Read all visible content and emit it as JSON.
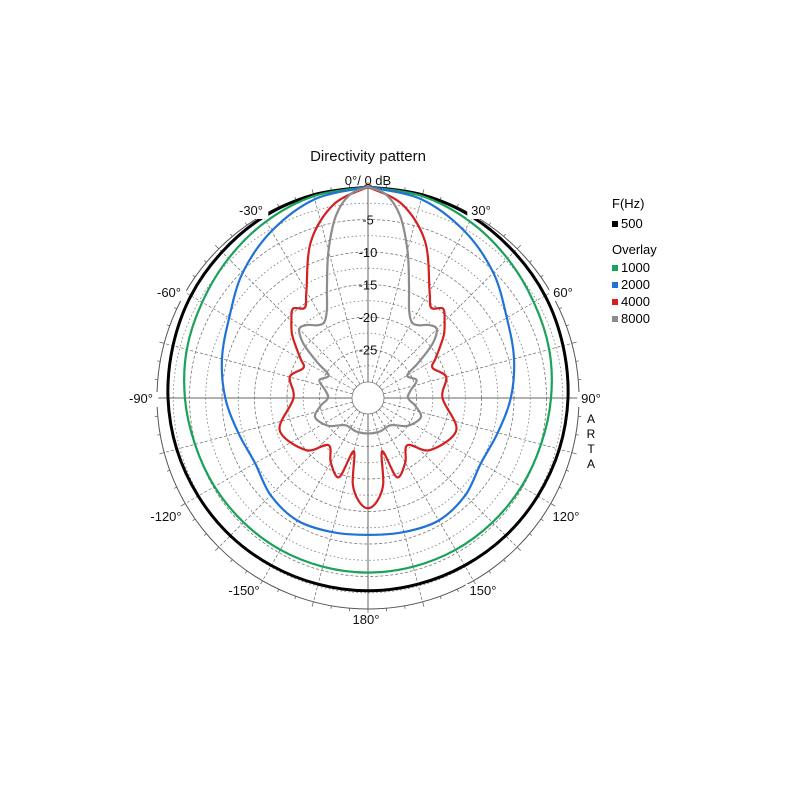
{
  "chart_data": {
    "type": "polar",
    "title": "Directivity pattern",
    "radial_unit_label": "0°/ 0 dB",
    "radial_ticks": [
      "-5",
      "-10",
      "-15",
      "-20",
      "-25"
    ],
    "radial_range_db": [
      -30,
      0
    ],
    "angle_labels": [
      "-30°",
      "30°",
      "-60°",
      "60°",
      "-90°",
      "90°",
      "-120°",
      "120°",
      "-150°",
      "150°",
      "180°"
    ],
    "grid": true,
    "legend": {
      "placement": "right",
      "header": "F(Hz)",
      "overlay_label": "Overlay"
    },
    "series": [
      {
        "name": "500",
        "color": "#000000",
        "angles": [
          0,
          15,
          30,
          45,
          60,
          75,
          90,
          105,
          120,
          135,
          150,
          165,
          180
        ],
        "db": [
          0,
          -0.1,
          -0.3,
          -0.7,
          -1.0,
          -1.4,
          -1.7,
          -2.0,
          -2.3,
          -2.5,
          -2.7,
          -2.8,
          -2.8
        ]
      },
      {
        "name": "1000",
        "color": "#1aa15a",
        "angles": [
          0,
          15,
          30,
          45,
          60,
          75,
          90,
          105,
          120,
          135,
          150,
          165,
          180
        ],
        "db": [
          0,
          -0.3,
          -1.1,
          -2.1,
          -3.0,
          -3.6,
          -4.3,
          -4.9,
          -5.2,
          -5.4,
          -5.5,
          -5.6,
          -5.6
        ]
      },
      {
        "name": "2000",
        "color": "#1f73d6",
        "angles": [
          0,
          15,
          30,
          45,
          60,
          75,
          90,
          105,
          120,
          135,
          150,
          165,
          180
        ],
        "db": [
          0,
          -0.8,
          -2.8,
          -5.2,
          -7.8,
          -9.2,
          -10.5,
          -11.8,
          -12.4,
          -11.3,
          -10.7,
          -11.1,
          -11.4
        ]
      },
      {
        "name": "4000",
        "color": "#d42020",
        "angles": [
          0,
          10,
          20,
          30,
          35,
          40,
          45,
          50,
          55,
          60,
          65,
          75,
          90,
          110,
          130,
          140,
          150,
          160,
          165,
          170,
          175,
          180
        ],
        "db": [
          0,
          -2.2,
          -6.8,
          -13.5,
          -15.5,
          -14.5,
          -15.8,
          -17.2,
          -19.0,
          -20.5,
          -21.5,
          -20.0,
          -21.0,
          -18.0,
          -20.0,
          -23.0,
          -21.0,
          -19.5,
          -24.0,
          -19.0,
          -16.5,
          -15.5
        ]
      },
      {
        "name": "8000",
        "color": "#8c8c8c",
        "angles": [
          0,
          5,
          10,
          15,
          20,
          25,
          30,
          35,
          40,
          45,
          50,
          55,
          60,
          70,
          80,
          90,
          100,
          110,
          125,
          140,
          160,
          180
        ],
        "db": [
          0,
          -1.0,
          -4.0,
          -9.0,
          -14.0,
          -17.5,
          -19.0,
          -18.8,
          -17.8,
          -17.5,
          -19.5,
          -23.0,
          -25.5,
          -24.5,
          -25.8,
          -26.3,
          -25.0,
          -23.8,
          -25.0,
          -27.0,
          -27.0,
          -27.0
        ]
      }
    ]
  },
  "brand_letters": [
    "A",
    "R",
    "T",
    "A"
  ]
}
